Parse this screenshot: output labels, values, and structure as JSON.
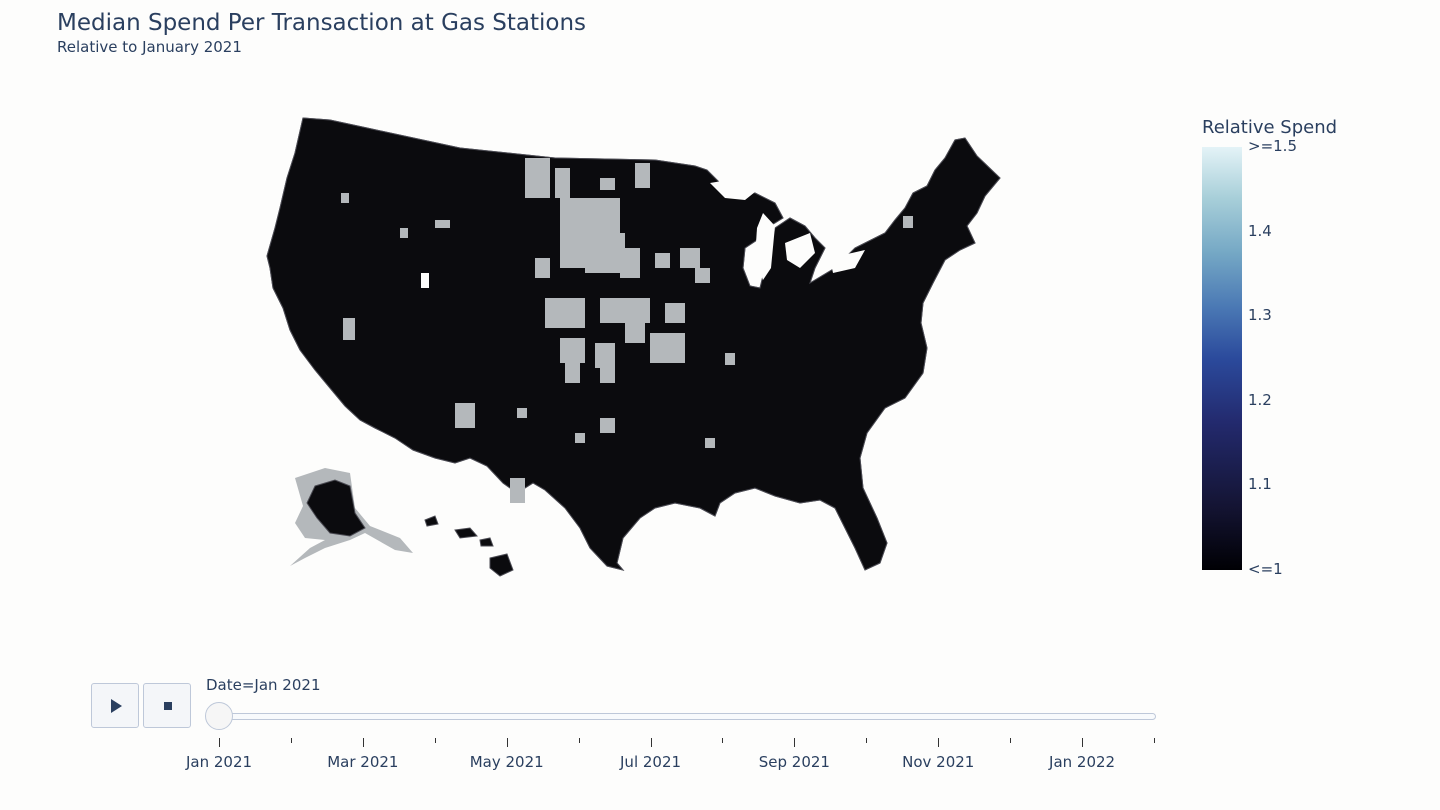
{
  "title": "Median Spend Per Transaction at Gas Stations",
  "subtitle": "Relative to January 2021",
  "colorbar": {
    "title": "Relative Spend",
    "ticks": [
      {
        "label": ">=1.5",
        "value": 1.5
      },
      {
        "label": "1.4",
        "value": 1.4
      },
      {
        "label": "1.3",
        "value": 1.3
      },
      {
        "label": "1.2",
        "value": 1.2
      },
      {
        "label": "1.1",
        "value": 1.1
      },
      {
        "label": "<=1",
        "value": 1.0
      }
    ],
    "range": [
      1.0,
      1.5
    ],
    "colorscale": [
      "#000004",
      "#141433",
      "#232a6e",
      "#2b4a9c",
      "#4a78b4",
      "#75a8c5",
      "#a8cfd9",
      "#e4f3f7"
    ]
  },
  "map": {
    "fill_color": "#0b0b0e",
    "border_color": "#4a4a52",
    "missing_color": "#b4b8bb"
  },
  "slider": {
    "current_label": "Date=Jan 2021",
    "current_index": 0,
    "labels": [
      "Jan 2021",
      "Mar 2021",
      "May 2021",
      "Jul 2021",
      "Sep 2021",
      "Nov 2021",
      "Jan 2022"
    ]
  },
  "controls": {
    "play_icon": "play-icon",
    "stop_icon": "stop-icon"
  }
}
